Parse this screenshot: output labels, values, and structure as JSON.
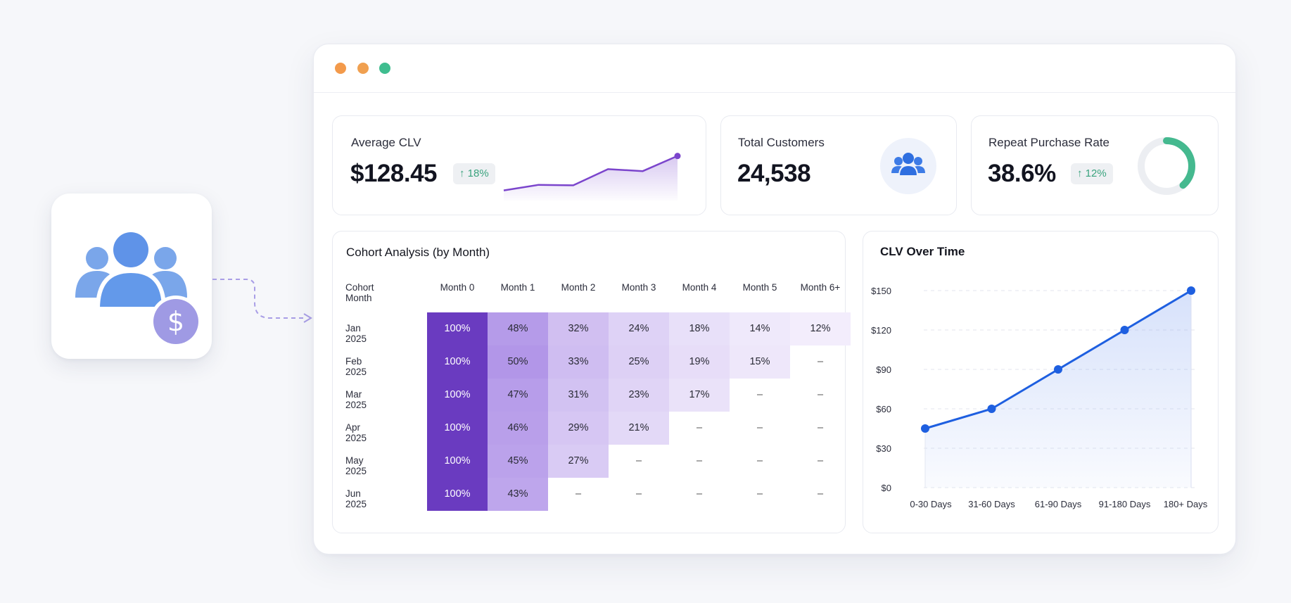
{
  "kpis": {
    "avg_clv": {
      "label": "Average CLV",
      "value": "$128.45",
      "delta": "18%"
    },
    "total_customers": {
      "label": "Total Customers",
      "value": "24,538"
    },
    "repeat_rate": {
      "label": "Repeat Purchase Rate",
      "value": "38.6%",
      "delta": "12%",
      "fraction": 0.386
    }
  },
  "colors": {
    "window_dots": [
      "#f39a4b",
      "#f0a050",
      "#3fbd8f"
    ],
    "accent_purple": "#6a3bc0",
    "accent_blue": "#1e5fe0",
    "donut_green": "#45b98f",
    "delta_green": "#3aa37e"
  },
  "icons": {
    "app": "customers-dollar-icon",
    "customers": "people-group-icon",
    "delta": "arrow-up-icon"
  },
  "cohort": {
    "title": "Cohort Analysis (by Month)",
    "corner_header": "Cohort Month",
    "columns": [
      "Month 0",
      "Month 1",
      "Month 2",
      "Month 3",
      "Month 4",
      "Month 5",
      "Month 6+"
    ],
    "rows": [
      {
        "label": "Jan 2025",
        "cells": [
          "100%",
          "48%",
          "32%",
          "24%",
          "18%",
          "14%",
          "12%"
        ]
      },
      {
        "label": "Feb 2025",
        "cells": [
          "100%",
          "50%",
          "33%",
          "25%",
          "19%",
          "15%",
          "–"
        ]
      },
      {
        "label": "Mar 2025",
        "cells": [
          "100%",
          "47%",
          "31%",
          "23%",
          "17%",
          "–",
          "–"
        ]
      },
      {
        "label": "Apr 2025",
        "cells": [
          "100%",
          "46%",
          "29%",
          "21%",
          "–",
          "–",
          "–"
        ]
      },
      {
        "label": "May 2025",
        "cells": [
          "100%",
          "45%",
          "27%",
          "–",
          "–",
          "–",
          "–"
        ]
      },
      {
        "label": "Jun 2025",
        "cells": [
          "100%",
          "43%",
          "–",
          "–",
          "–",
          "–",
          "–"
        ]
      }
    ]
  },
  "chart_data": {
    "type": "line",
    "title": "CLV Over Time",
    "categories": [
      "0-30 Days",
      "31-60 Days",
      "61-90 Days",
      "91-180 Days",
      "180+ Days"
    ],
    "values": [
      45,
      60,
      90,
      120,
      150
    ],
    "ylim": [
      0,
      150
    ],
    "yticks": [
      "$0",
      "$30",
      "$60",
      "$90",
      "$120",
      "$150"
    ],
    "grid": true
  },
  "sparkline": {
    "values": [
      20,
      31,
      30,
      62,
      58,
      88
    ]
  }
}
